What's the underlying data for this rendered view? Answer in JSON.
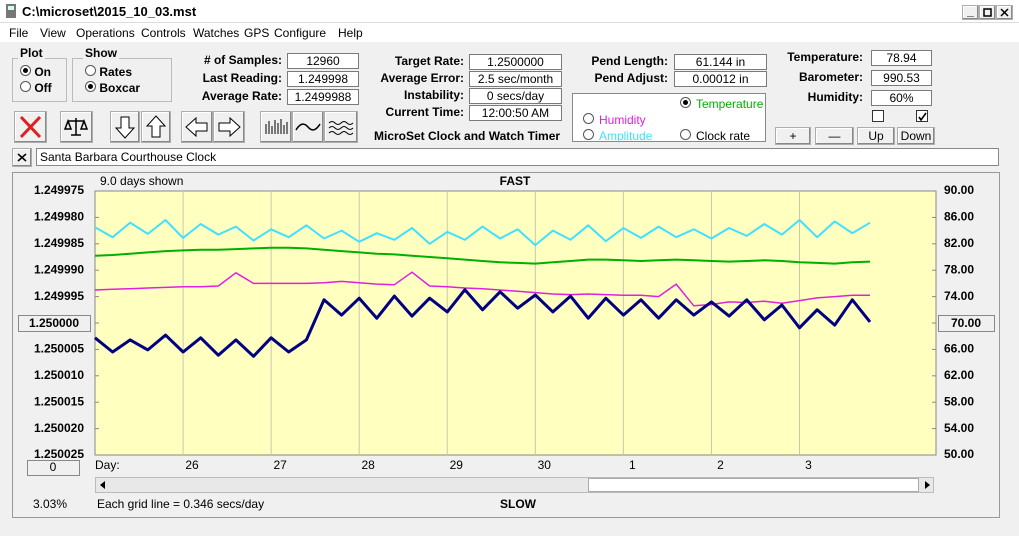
{
  "window": {
    "title": "C:\\microset\\2015_10_03.mst",
    "menu": [
      "File",
      "View",
      "Operations",
      "Controls",
      "Watches",
      "GPS",
      "Configure",
      "Help"
    ]
  },
  "plot_group": {
    "label": "Plot",
    "options": [
      "On",
      "Off"
    ]
  },
  "show_group": {
    "label": "Show",
    "options": [
      "Rates",
      "Boxcar"
    ]
  },
  "readouts": [
    {
      "label": "# of Samples:",
      "value": "12960"
    },
    {
      "label": "Last Reading:",
      "value": "1.249998"
    },
    {
      "label": "Average Rate:",
      "value": "1.2499988"
    },
    {
      "label": "Target Rate:",
      "value": "1.2500000"
    },
    {
      "label": "Average Error:",
      "value": "2.5 sec/month"
    },
    {
      "label": "Instability:",
      "value": "0 secs/day"
    },
    {
      "label": "Current Time:",
      "value": "12:00:50 AM"
    },
    {
      "label": "Pend Length:",
      "value": "61.144 in"
    },
    {
      "label": "Pend Adjust:",
      "value": "0.00012 in"
    },
    {
      "label": "Temperature:",
      "value": "78.94"
    },
    {
      "label": "Barometer:",
      "value": "990.53"
    },
    {
      "label": "Humidity:",
      "value": "60%"
    }
  ],
  "app_name": "MicroSet Clock and Watch Timer",
  "buttons": [
    "+",
    "—",
    "Up",
    "Down"
  ],
  "clock_name": "Santa Barbara Courthouse Clock",
  "chart_data": {
    "type": "line",
    "annotations": {
      "days_shown": "9.0 days shown",
      "top": "FAST",
      "bottom": "SLOW",
      "x_prefix": "Day:",
      "grid_note": "Each grid line = 0.346 secs/day",
      "percent": "3.03%",
      "left_center": "1.250000",
      "right_center": "70.00",
      "scroll_box": "0"
    },
    "x": [
      0,
      0.2,
      0.4,
      0.6,
      0.8,
      1.0,
      1.2,
      1.4,
      1.6,
      1.8,
      2.0,
      2.2,
      2.4,
      2.6,
      2.8,
      3.0,
      3.2,
      3.4,
      3.6,
      3.8,
      4.0,
      4.2,
      4.4,
      4.6,
      4.8,
      5.0,
      5.2,
      5.4,
      5.6,
      5.8,
      6.0,
      6.2,
      6.4,
      6.6,
      6.8,
      7.0,
      7.2,
      7.4,
      7.6,
      7.8,
      8.0,
      8.2,
      8.4,
      8.6,
      8.8
    ],
    "xlim": [
      0,
      9.55
    ],
    "xticks": [
      {
        "value": 1,
        "label": "26"
      },
      {
        "value": 2,
        "label": "27"
      },
      {
        "value": 3,
        "label": "28"
      },
      {
        "value": 4,
        "label": "29"
      },
      {
        "value": 5,
        "label": "30"
      },
      {
        "value": 6,
        "label": "1"
      },
      {
        "value": 7,
        "label": "2"
      },
      {
        "value": 8,
        "label": "3"
      }
    ],
    "xgrid": true,
    "ylim": [
      1.250025,
      1.249975
    ],
    "yticks": [
      {
        "value": 1.249975,
        "label": "1.249975"
      },
      {
        "value": 1.24998,
        "label": "1.249980"
      },
      {
        "value": 1.249985,
        "label": "1.249985"
      },
      {
        "value": 1.24999,
        "label": "1.249990"
      },
      {
        "value": 1.249995,
        "label": "1.249995"
      },
      {
        "value": 1.25,
        "label": "1.250000"
      },
      {
        "value": 1.250005,
        "label": "1.250005"
      },
      {
        "value": 1.25001,
        "label": "1.250010"
      },
      {
        "value": 1.250015,
        "label": "1.250015"
      },
      {
        "value": 1.25002,
        "label": "1.250020"
      },
      {
        "value": 1.250025,
        "label": "1.250025"
      }
    ],
    "y2lim": [
      50,
      90
    ],
    "y2ticks": [
      {
        "value": 90,
        "label": "90.00"
      },
      {
        "value": 86,
        "label": "86.00"
      },
      {
        "value": 82,
        "label": "82.00"
      },
      {
        "value": 78,
        "label": "78.00"
      },
      {
        "value": 74,
        "label": "74.00"
      },
      {
        "value": 70,
        "label": "70.00"
      },
      {
        "value": 66,
        "label": "66.00"
      },
      {
        "value": 62,
        "label": "62.00"
      },
      {
        "value": 58,
        "label": "58.00"
      },
      {
        "value": 54,
        "label": "54.00"
      },
      {
        "value": 50,
        "label": "50.00"
      }
    ],
    "series": [
      {
        "name": "Temperature",
        "color": "#00b000",
        "axis": "y2",
        "values": [
          80.2,
          80.3,
          80.5,
          80.7,
          80.9,
          81.0,
          81.1,
          81.1,
          81.2,
          81.3,
          81.4,
          81.4,
          81.3,
          81.1,
          80.9,
          80.7,
          80.5,
          80.4,
          80.2,
          80.0,
          79.8,
          79.6,
          79.4,
          79.2,
          79.1,
          79.0,
          79.2,
          79.4,
          79.6,
          79.6,
          79.5,
          79.4,
          79.5,
          79.6,
          79.5,
          79.4,
          79.3,
          79.4,
          79.5,
          79.4,
          79.2,
          79.1,
          79.0,
          79.2,
          79.3
        ]
      },
      {
        "name": "Humidity",
        "color": "#e020e0",
        "axis": "y2",
        "values": [
          75.0,
          75.1,
          75.2,
          75.3,
          75.4,
          75.5,
          75.5,
          75.6,
          77.6,
          76.0,
          76.0,
          76.0,
          76.0,
          76.1,
          76.3,
          76.1,
          75.9,
          75.8,
          77.7,
          75.6,
          75.5,
          75.3,
          75.2,
          75.0,
          74.8,
          74.6,
          74.4,
          74.3,
          74.4,
          74.3,
          74.2,
          74.2,
          74.0,
          75.9,
          72.6,
          72.8,
          73.2,
          73.1,
          73.3,
          73.0,
          73.4,
          73.8,
          74.0,
          74.2,
          74.2
        ]
      },
      {
        "name": "Amplitude",
        "color": "#40e0ff",
        "axis": "y2",
        "values": [
          84.5,
          83.0,
          85.2,
          83.5,
          85.6,
          82.9,
          85.0,
          83.4,
          84.6,
          82.5,
          84.2,
          83.0,
          84.8,
          82.8,
          84.0,
          82.3,
          83.6,
          82.6,
          84.4,
          82.0,
          83.8,
          82.6,
          84.6,
          82.8,
          84.2,
          81.8,
          84.0,
          82.6,
          84.8,
          82.4,
          84.4,
          82.9,
          84.6,
          83.0,
          84.2,
          82.8,
          84.4,
          83.2,
          85.0,
          83.4,
          85.6,
          83.0,
          85.4,
          83.6,
          85.2
        ]
      },
      {
        "name": "Clock rate",
        "color": "#000080",
        "axis": "y",
        "values": [
          1.2500028,
          1.2500055,
          1.2500032,
          1.2500051,
          1.2500023,
          1.2500055,
          1.2500028,
          1.2500061,
          1.2500032,
          1.2500063,
          1.2500028,
          1.2500055,
          1.2500032,
          1.2499956,
          1.2499985,
          1.2499953,
          1.2499991,
          1.2499949,
          1.2499987,
          1.2499953,
          1.2499979,
          1.2499937,
          1.2499975,
          1.2499941,
          1.2499972,
          1.2499947,
          1.2499979,
          1.2499949,
          1.2499991,
          1.2499953,
          1.2499985,
          1.2499956,
          1.2499991,
          1.2499956,
          1.2499985,
          1.249996,
          1.2499987,
          1.2499956,
          1.2499994,
          1.2499966,
          1.2500009,
          1.2499975,
          1.2500004,
          1.2499956,
          1.2499998
        ]
      }
    ]
  }
}
